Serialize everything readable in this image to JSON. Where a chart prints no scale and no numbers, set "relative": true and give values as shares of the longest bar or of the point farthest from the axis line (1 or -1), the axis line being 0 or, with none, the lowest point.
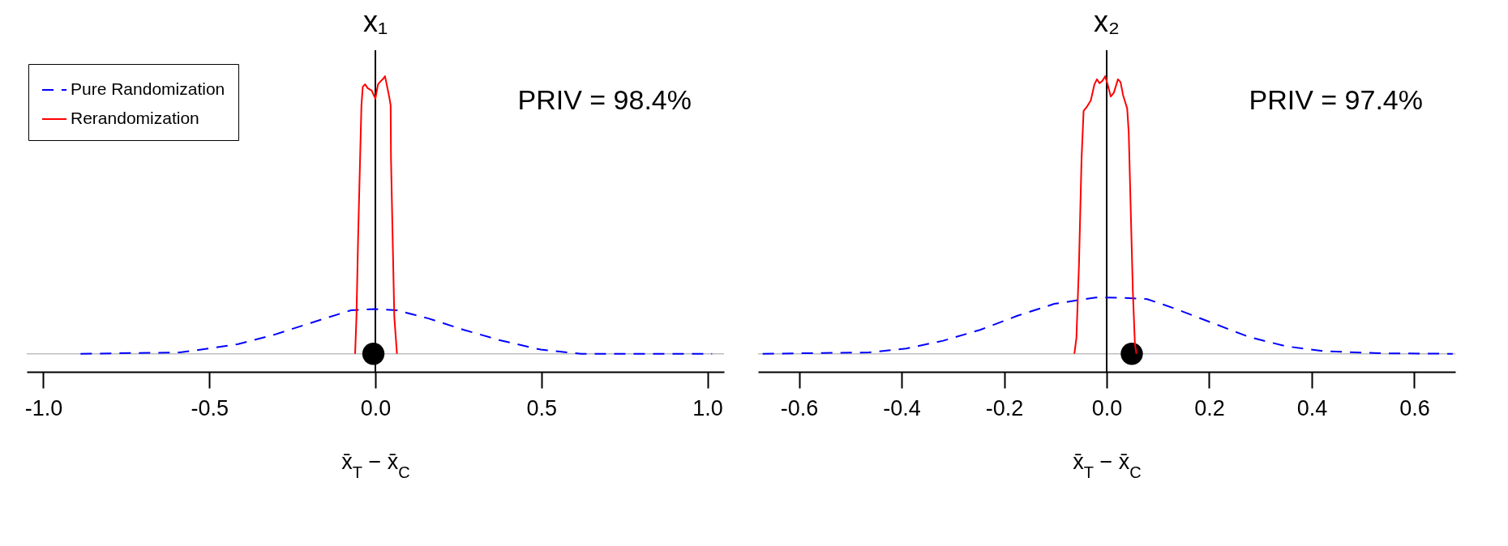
{
  "chart_data": [
    {
      "type": "line",
      "title": "x₁",
      "xlabel": "x̄$_{T}$ − x̄$_{C}$",
      "relative": true,
      "xlim": [
        -1.05,
        1.05
      ],
      "xticks": [
        {
          "value": -1,
          "label": "-1.0"
        },
        -0.5,
        {
          "value": 0,
          "label": "0.0"
        },
        0.5,
        {
          "value": 1,
          "label": "1.0"
        }
      ],
      "legend": "top left",
      "grid": false,
      "annotations": [
        "PRIV = 98.4%"
      ],
      "ref_lines": [
        {
          "axis": "x",
          "value": 0,
          "color": "#000000"
        },
        {
          "axis": "y",
          "value": 0,
          "color": "#bebebe"
        }
      ],
      "series": [
        {
          "name": "Pure Randomization",
          "color": "#0000ff",
          "line_style": "dashed",
          "x": [
            -0.888,
            -0.589,
            -0.508,
            -0.413,
            -0.304,
            -0.195,
            -0.073,
            -0.005,
            0.063,
            0.158,
            0.267,
            0.375,
            0.498,
            0.62,
            1.014
          ],
          "values": [
            0,
            0.005,
            0.018,
            0.035,
            0.069,
            0.111,
            0.157,
            0.161,
            0.157,
            0.128,
            0.086,
            0.049,
            0.015,
            0,
            0
          ]
        },
        {
          "name": "Rerandomization",
          "color": "#ff0000",
          "line_style": "solid",
          "x": [
            -0.061,
            -0.057,
            -0.052,
            -0.046,
            -0.042,
            -0.038,
            -0.031,
            -0.023,
            -0.011,
            0,
            0.008,
            0.015,
            0.023,
            0.029,
            0.034,
            0.042,
            0.046,
            0.047,
            0.052,
            0.057,
            0.065
          ],
          "values": [
            0,
            0.133,
            0.419,
            0.705,
            0.895,
            0.962,
            0.971,
            0.957,
            0.948,
            0.919,
            0.971,
            0.981,
            0.99,
            1,
            0.971,
            0.924,
            0.895,
            0.705,
            0.419,
            0.133,
            0
          ]
        },
        {
          "type": "scatter",
          "color": "#000000",
          "marker": "circle",
          "x": [
            -0.006
          ],
          "values": [
            0
          ]
        }
      ]
    },
    {
      "type": "line",
      "title": "x₂",
      "xlabel": "x̄$_{T}$ − x̄$_{C}$",
      "relative": true,
      "xlim": [
        -0.68,
        0.68
      ],
      "xticks": [
        {
          "value": -0.6,
          "label": "-0.6"
        },
        {
          "value": -0.4,
          "label": "-0.4"
        },
        {
          "value": -0.2,
          "label": "-0.2"
        },
        {
          "value": 0,
          "label": "0.0"
        },
        0.2,
        0.4,
        0.6
      ],
      "grid": false,
      "annotations": [
        "PRIV = 97.4%"
      ],
      "ref_lines": [
        {
          "axis": "x",
          "value": 0,
          "color": "#000000"
        },
        {
          "axis": "y",
          "value": 0,
          "color": "#bebebe"
        }
      ],
      "series": [
        {
          "color": "#0000ff",
          "line_style": "dashed",
          "x": [
            -0.671,
            -0.464,
            -0.391,
            -0.319,
            -0.247,
            -0.174,
            -0.102,
            -0.021,
            0.024,
            0.079,
            0.133,
            0.205,
            0.277,
            0.35,
            0.422,
            0.53,
            0.675
          ],
          "values": [
            0,
            0.005,
            0.019,
            0.047,
            0.086,
            0.137,
            0.18,
            0.203,
            0.202,
            0.197,
            0.163,
            0.112,
            0.061,
            0.027,
            0.01,
            0.002,
            0
          ]
        },
        {
          "color": "#ff0000",
          "line_style": "solid",
          "x": [
            -0.063,
            -0.059,
            -0.054,
            -0.049,
            -0.045,
            -0.039,
            -0.031,
            -0.024,
            -0.019,
            -0.014,
            -0.008,
            -0.003,
            0.002,
            0.008,
            0.014,
            0.022,
            0.027,
            0.032,
            0.04,
            0.043,
            0.047,
            0.051,
            0.055,
            0.058
          ],
          "values": [
            0,
            0.057,
            0.323,
            0.703,
            0.875,
            0.889,
            0.913,
            0.97,
            0.989,
            0.975,
            0.984,
            1,
            0.97,
            0.927,
            0.941,
            0.989,
            0.979,
            0.932,
            0.884,
            0.798,
            0.513,
            0.228,
            0.038,
            0
          ]
        },
        {
          "type": "scatter",
          "color": "#000000",
          "marker": "circle",
          "x": [
            0.049
          ],
          "values": [
            0
          ]
        }
      ]
    }
  ]
}
